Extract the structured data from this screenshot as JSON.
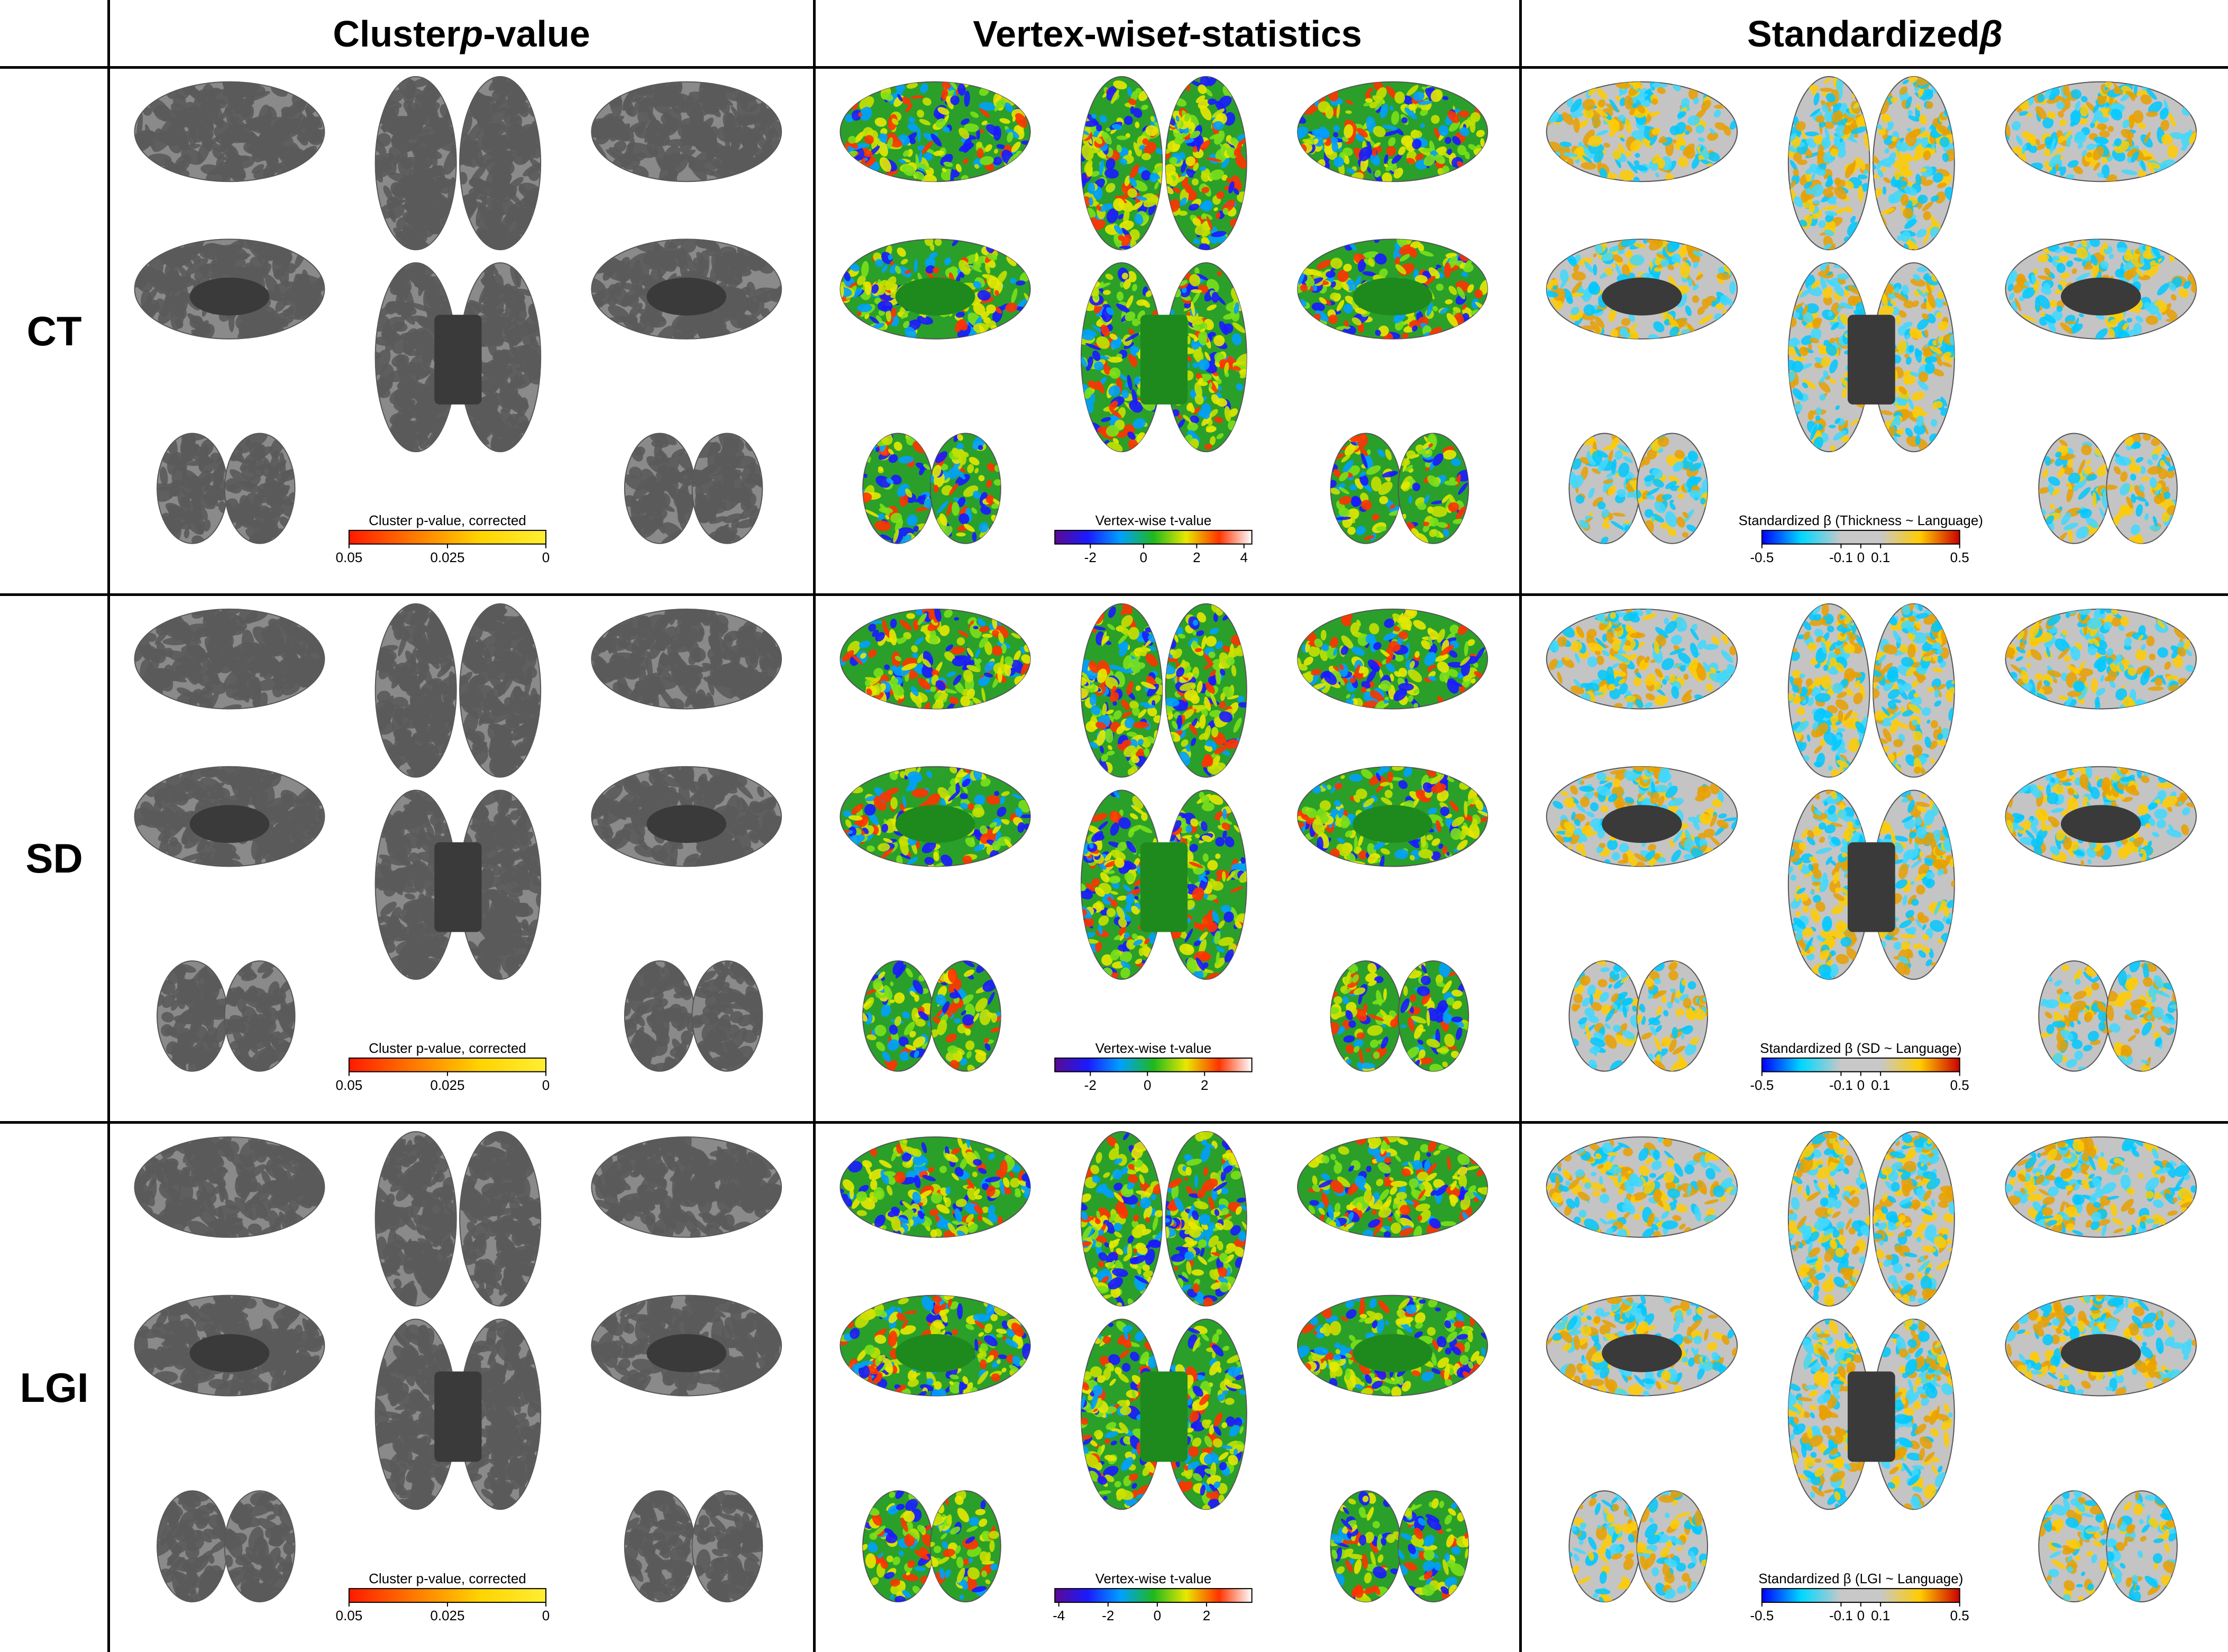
{
  "columns": [
    {
      "prefix": "Cluster ",
      "italic": "p",
      "suffix": "-value"
    },
    {
      "prefix": "Vertex-wise ",
      "italic": "t",
      "suffix": "-statistics"
    },
    {
      "prefix": "Standardized ",
      "italic": "β",
      "suffix": ""
    }
  ],
  "rows": [
    "CT",
    "SD",
    "LGI"
  ],
  "panels": [
    {
      "style": "pvalue",
      "cbar_title": "Cluster p-value, corrected",
      "ticks": [
        "0.05",
        "0.025",
        "0"
      ],
      "tick_pos": [
        0,
        0.5,
        1
      ]
    },
    {
      "style": "tstat",
      "cbar_title": "Vertex-wise t-value",
      "ticks": [
        "-2",
        "0",
        "2",
        "4"
      ],
      "tick_pos": [
        0.18,
        0.45,
        0.72,
        0.96
      ]
    },
    {
      "style": "beta",
      "cbar_title": "Standardized β (Thickness ~ Language)",
      "ticks": [
        "-0.5",
        "-0.1",
        "0",
        "0.1",
        "0.5"
      ],
      "tick_pos": [
        0,
        0.4,
        0.5,
        0.6,
        1
      ]
    },
    {
      "style": "pvalue",
      "cbar_title": "Cluster p-value, corrected",
      "ticks": [
        "0.05",
        "0.025",
        "0"
      ],
      "tick_pos": [
        0,
        0.5,
        1
      ]
    },
    {
      "style": "tstat",
      "cbar_title": "Vertex-wise t-value",
      "ticks": [
        "-2",
        "0",
        "2"
      ],
      "tick_pos": [
        0.18,
        0.47,
        0.76
      ]
    },
    {
      "style": "beta",
      "cbar_title": "Standardized β (SD ~ Language)",
      "ticks": [
        "-0.5",
        "-0.1",
        "0",
        "0.1",
        "0.5"
      ],
      "tick_pos": [
        0,
        0.4,
        0.5,
        0.6,
        1
      ]
    },
    {
      "style": "pvalue",
      "cbar_title": "Cluster p-value, corrected",
      "ticks": [
        "0.05",
        "0.025",
        "0"
      ],
      "tick_pos": [
        0,
        0.5,
        1
      ]
    },
    {
      "style": "tstat",
      "cbar_title": "Vertex-wise t-value",
      "ticks": [
        "-4",
        "-2",
        "0",
        "2"
      ],
      "tick_pos": [
        0.02,
        0.27,
        0.52,
        0.77
      ]
    },
    {
      "style": "beta",
      "cbar_title": "Standardized β (LGI ~ Language)",
      "ticks": [
        "-0.5",
        "-0.1",
        "0",
        "0.1",
        "0.5"
      ],
      "tick_pos": [
        0,
        0.4,
        0.5,
        0.6,
        1
      ]
    }
  ],
  "colors": {
    "pvalue_cbar": [
      "#ff1a00",
      "#ff7a00",
      "#ffd400",
      "#ffee33"
    ],
    "tstat_cbar": [
      "#5b0a91",
      "#1a1aff",
      "#00a0ff",
      "#1fb81f",
      "#e8e800",
      "#ff3300",
      "#ffffff"
    ],
    "beta_cbar": [
      "#0000ff",
      "#00d8ff",
      "#c8c8c8",
      "#c8c8c8",
      "#ffcc00",
      "#cc0000"
    ],
    "brain_gray_light": "#8a8a8a",
    "brain_gray_dark": "#5a5a5a",
    "brain_green": "#2aa02a",
    "brain_beta": "#c4c4c4",
    "medial_wall": "#3a3a3a"
  }
}
